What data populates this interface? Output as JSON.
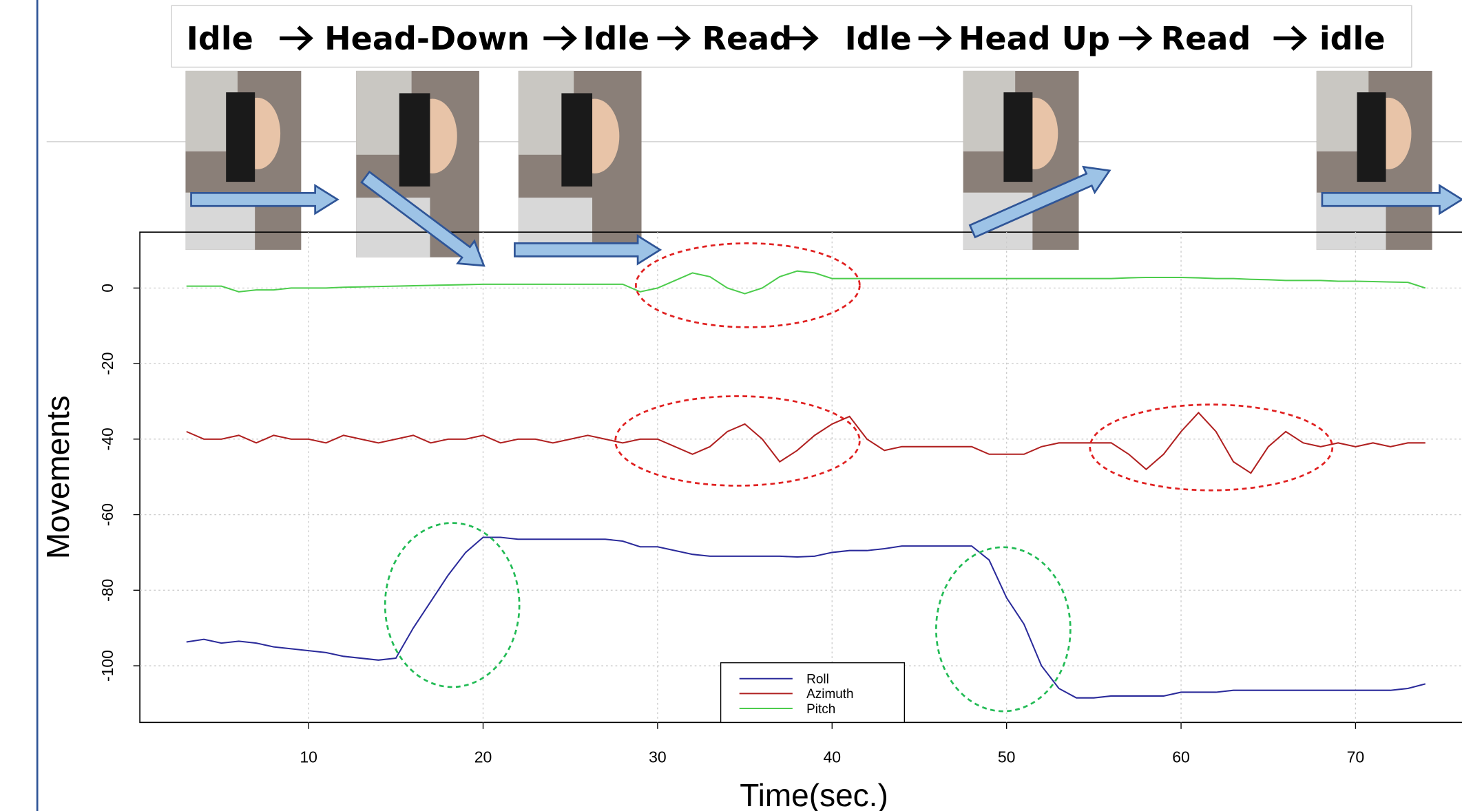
{
  "header": {
    "sequence": [
      "Idle",
      "Head-Down",
      "Idle",
      "Read",
      "Idle",
      "Head Up",
      "Read",
      "idle"
    ]
  },
  "chart_data": {
    "type": "line",
    "xlabel": "Time(sec.)",
    "ylabel": "Movements",
    "x": [
      3,
      4,
      5,
      6,
      7,
      8,
      9,
      10,
      11,
      12,
      13,
      14,
      15,
      16,
      17,
      18,
      19,
      20,
      21,
      22,
      23,
      24,
      25,
      26,
      27,
      28,
      29,
      30,
      31,
      32,
      33,
      34,
      35,
      36,
      37,
      38,
      39,
      40,
      41,
      42,
      43,
      44,
      45,
      46,
      47,
      48,
      49,
      50,
      51,
      52,
      53,
      54,
      55,
      56,
      57,
      58,
      59,
      60,
      61,
      62,
      63,
      64,
      65,
      66,
      67,
      68,
      69,
      70,
      71,
      72,
      73,
      74
    ],
    "series": [
      {
        "name": "Roll",
        "color": "#2a2a9a",
        "values": [
          -93.7,
          -93,
          -94,
          -93.5,
          -94,
          -95,
          -95.5,
          -96,
          -96.5,
          -97.5,
          -98,
          -98.5,
          -98,
          -90,
          -83,
          -76,
          -70,
          -66,
          -66,
          -66.5,
          -66.5,
          -66.5,
          -66.5,
          -66.5,
          -66.5,
          -67,
          -68.5,
          -68.5,
          -69.5,
          -70.5,
          -71,
          -71,
          -71,
          -71,
          -71,
          -71.2,
          -71,
          -70,
          -69.5,
          -69.5,
          -69,
          -68.3,
          -68.3,
          -68.3,
          -68.3,
          -68.3,
          -72,
          -82,
          -89,
          -100,
          -106,
          -108.5,
          -108.5,
          -108,
          -108,
          -108,
          -108,
          -107,
          -107,
          -107,
          -106.5,
          -106.5,
          -106.5,
          -106.5,
          -106.5,
          -106.5,
          -106.5,
          -106.5,
          -106.5,
          -106.5,
          -106,
          -104.8
        ]
      },
      {
        "name": "Azimuth",
        "color": "#b02020",
        "values": [
          -38,
          -40,
          -40,
          -39,
          -41,
          -39,
          -40,
          -40,
          -41,
          -39,
          -40,
          -41,
          -40,
          -39,
          -41,
          -40,
          -40,
          -39,
          -41,
          -40,
          -40,
          -41,
          -40,
          -39,
          -40,
          -41,
          -40,
          -40,
          -42,
          -44,
          -42,
          -38,
          -36,
          -40,
          -46,
          -43,
          -39,
          -36,
          -34,
          -40,
          -43,
          -42,
          -42,
          -42,
          -42,
          -42,
          -44,
          -44,
          -44,
          -42,
          -41,
          -41,
          -41,
          -41,
          -44,
          -48,
          -44,
          -38,
          -33,
          -38,
          -46,
          -49,
          -42,
          -38,
          -41,
          -42,
          -41,
          -42,
          -41,
          -42,
          -41,
          -41
        ]
      },
      {
        "name": "Pitch",
        "color": "#4ccc4c",
        "values": [
          0.5,
          0.5,
          0.5,
          -1,
          -0.5,
          -0.5,
          0,
          0,
          0,
          0.2,
          0.3,
          0.4,
          0.5,
          0.6,
          0.7,
          0.8,
          0.9,
          1,
          1,
          1,
          1,
          1,
          1,
          1,
          1,
          1,
          -1,
          0,
          2,
          4,
          3,
          0,
          -1.5,
          0,
          3,
          4.5,
          4,
          2.5,
          2.5,
          2.5,
          2.5,
          2.5,
          2.5,
          2.5,
          2.5,
          2.5,
          2.5,
          2.5,
          2.5,
          2.5,
          2.5,
          2.5,
          2.5,
          2.5,
          2.7,
          2.8,
          2.8,
          2.8,
          2.7,
          2.5,
          2.5,
          2.3,
          2.2,
          2,
          2,
          2,
          1.8,
          1.8,
          1.7,
          1.6,
          1.5,
          0
        ]
      }
    ],
    "xlim": [
      0.33,
      76.1
    ],
    "ylim": [
      -115,
      14.8
    ],
    "xticks": [
      10,
      20,
      30,
      40,
      50,
      60,
      70
    ],
    "yticks": [
      0,
      -20,
      -40,
      -60,
      -80,
      -100
    ],
    "grid": true
  }
}
